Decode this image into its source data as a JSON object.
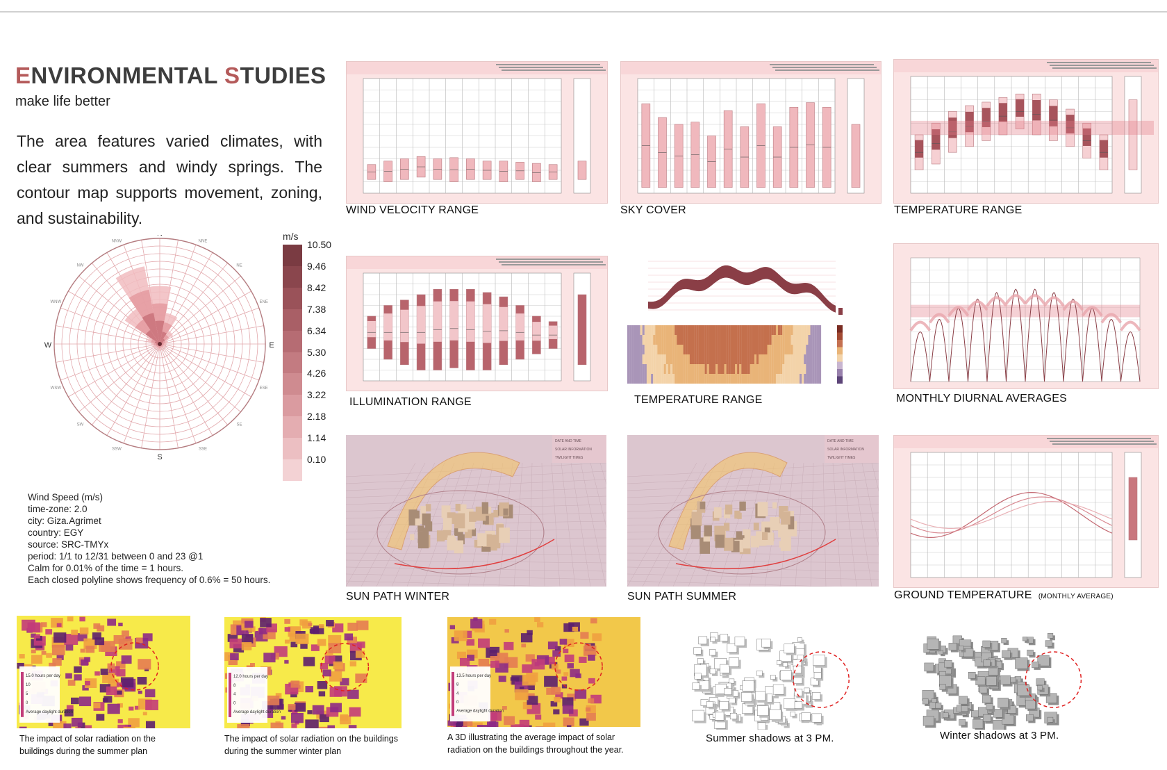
{
  "title_accent_1": "E",
  "title_rest_1": "NVIRONMENTAL ",
  "title_accent_2": "S",
  "title_rest_2": "TUDIES",
  "subtitle": "make life better",
  "intro": "The area features varied climates, with clear summers and windy springs. The contour map supports movement, zoning, and sustainability.",
  "wind_rose": {
    "directions": [
      "N",
      "NNE",
      "NE",
      "ENE",
      "E",
      "ESE",
      "SE",
      "SSE",
      "S",
      "SSW",
      "SW",
      "WSW",
      "W",
      "WNW",
      "NW",
      "NNW"
    ],
    "legend_unit": "m/s",
    "legend_values": [
      "10.50",
      "9.46",
      "8.42",
      "7.38",
      "6.34",
      "5.30",
      "4.26",
      "3.22",
      "2.18",
      "1.14",
      "0.10"
    ],
    "info": [
      "Wind Speed (m/s)",
      "time-zone: 2.0",
      "city: Giza.Agrimet",
      "country: EGY",
      "source: SRC-TMYx",
      "period: 1/1 to 12/31 between 0 and 23 @1",
      "Calm for 0.01% of the time = 1 hours.",
      "Each closed polyline shows frequency of 0.6% = 50 hours."
    ]
  },
  "captions": {
    "wind_velocity": "WIND VELOCITY RANGE",
    "sky_cover": "SKY COVER",
    "temperature_range_1": "TEMPERATURE RANGE",
    "illumination": "ILLUMINATION RANGE",
    "temperature_range_2": "TEMPERATURE RANGE",
    "monthly_diurnal": "MONTHLY DIURNAL AVERAGES",
    "sun_path_winter": "SUN PATH WINTER",
    "sun_path_summer": "SUN PATH SUMMER",
    "ground_temp": "GROUND TEMPERATURE",
    "ground_temp_sub": "(MONTHLY AVERAGE)"
  },
  "sun_menu": [
    "DATE AND TIME",
    "SOLAR INFORMATION",
    "TWILIGHT TIMES"
  ],
  "bottom_captions": {
    "rad1": "The impact of solar radiation on the buildings during the summer plan",
    "rad2": "The impact of solar radiation on the buildings during the summer winter plan",
    "rad3": "A 3D illustrating the average impact of solar radiation on the buildings throughout the year.",
    "shadow1": "Summer shadows at 3 PM.",
    "shadow2": "Winter shadows at 3 PM."
  },
  "rad_legends": {
    "rad1": [
      "15.0 hours per day",
      "10",
      "5",
      "0",
      "Average daylight duration"
    ],
    "rad2": [
      "12.0 hours per day",
      "8",
      "4",
      "0",
      "Average daylight duration"
    ],
    "rad3": [
      "13.5 hours per day",
      "8",
      "4",
      "0",
      "Average daylight duration"
    ]
  },
  "colors": {
    "accent": "#b45a5a",
    "panel_bg": "#fbe4e4",
    "bar": "#e9aeb4",
    "bar_dark": "#9c4f56",
    "legend_dark": "#7a3b42"
  }
}
